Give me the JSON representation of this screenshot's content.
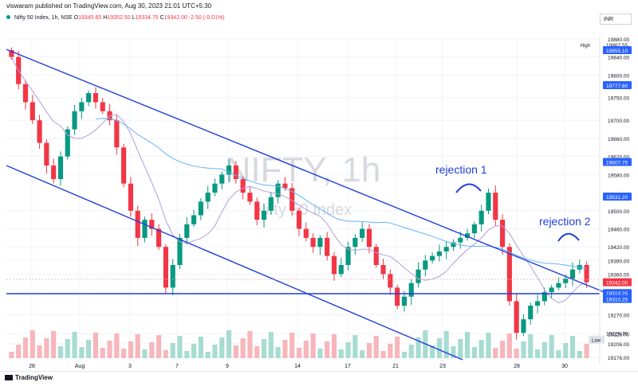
{
  "header": {
    "publisher": "viswaram published on TradingView.com, Aug 30, 2023 21:01 UTC+5:30",
    "currency": "INR",
    "symbol": "Nifty 50 Index, 1h, NSE",
    "ohlc": {
      "o_label": "O",
      "o": "19345.65",
      "h_label": "H",
      "h": "19352.50",
      "l_label": "L",
      "l": "19334.75",
      "c_label": "C",
      "c": "19342.00",
      "change": "-2.50 (-0.01%)"
    }
  },
  "watermark": {
    "ticker": "NIFTY, 1h",
    "name": "Nifty 50 Index"
  },
  "annotations": {
    "rejection1": "rejection 1",
    "rejection2": "rejection 2"
  },
  "footer": {
    "brand": "TradingView"
  },
  "colors": {
    "up": "#089981",
    "down": "#f23645",
    "trendline": "#1f3fd6",
    "ma_purple": "#b39ddb",
    "ma_blue": "#64b5f6",
    "label_bg": "#2962ff",
    "last_price_bg": "#f23645"
  },
  "chart_data": {
    "type": "candlestick",
    "ylim": [
      19160,
      19885
    ],
    "y_ticks": [
      "19880.00",
      "19840.00",
      "19800.00",
      "19750.00",
      "19700.00",
      "19660.00",
      "19620.00",
      "19580.00",
      "19500.00",
      "19460.00",
      "19420.00",
      "19390.00",
      "19360.00",
      "19270.00",
      "19228.00",
      "19206.00",
      "19176.00"
    ],
    "x_ticks": [
      "28",
      "Aug",
      "3",
      "7",
      "9",
      "14",
      "17",
      "21",
      "23",
      "28",
      "30"
    ],
    "price_labels": {
      "high": {
        "label": "High",
        "value": "19867.55",
        "y": 19867.55
      },
      "p1": {
        "value": "19855.10",
        "y": 19855.1
      },
      "p2": {
        "value": "19777.60",
        "y": 19777.6
      },
      "p3": {
        "value": "19607.75",
        "y": 19607.75
      },
      "p4": {
        "value": "19531.20",
        "y": 19531.2
      },
      "last": {
        "value": "19342.00",
        "y": 19342
      },
      "support1": {
        "value": "19310.25",
        "y": 19318
      },
      "support2": {
        "value": "19310.25",
        "y": 19305
      },
      "p5": {
        "value": "19229.70",
        "y": 19229.7
      },
      "low": {
        "label": "Low",
        "y": 19215
      }
    },
    "closes": [
      19840,
      19780,
      19740,
      19700,
      19650,
      19600,
      19570,
      19620,
      19680,
      19720,
      19740,
      19760,
      19740,
      19720,
      19700,
      19640,
      19560,
      19500,
      19440,
      19480,
      19460,
      19420,
      19330,
      19380,
      19440,
      19470,
      19490,
      19520,
      19540,
      19560,
      19580,
      19600,
      19570,
      19540,
      19520,
      19480,
      19500,
      19530,
      19560,
      19550,
      19500,
      19460,
      19440,
      19420,
      19440,
      19400,
      19360,
      19380,
      19420,
      19440,
      19460,
      19420,
      19380,
      19360,
      19330,
      19290,
      19310,
      19340,
      19370,
      19390,
      19400,
      19410,
      19420,
      19430,
      19440,
      19450,
      19470,
      19500,
      19540,
      19480,
      19420,
      19300,
      19230,
      19260,
      19290,
      19300,
      19320,
      19330,
      19340,
      19350,
      19370,
      19380,
      19342
    ]
  }
}
